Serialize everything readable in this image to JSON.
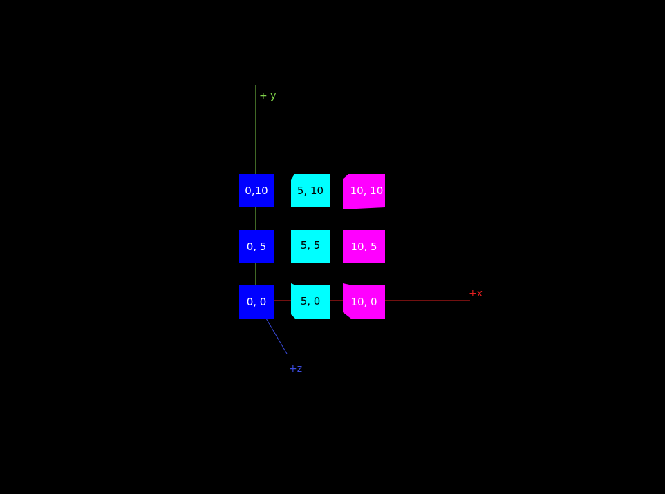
{
  "axes": {
    "y": {
      "label": "+ y",
      "color": "#7fd14a"
    },
    "x": {
      "label": "+x",
      "color": "#e32020"
    },
    "z": {
      "label": "+z",
      "color": "#3b4be0"
    }
  },
  "boxes": [
    {
      "label": "0,10",
      "color": "#0000ff",
      "text_color": "#ffffff"
    },
    {
      "label": "5, 10",
      "color": "#00ffff",
      "text_color": "#000000"
    },
    {
      "label": "10, 10",
      "color": "#ff00ff",
      "text_color": "#ffffff"
    },
    {
      "label": "0, 5",
      "color": "#0000ff",
      "text_color": "#ffffff"
    },
    {
      "label": "5, 5",
      "color": "#00ffff",
      "text_color": "#000000"
    },
    {
      "label": "10, 5",
      "color": "#ff00ff",
      "text_color": "#ffffff"
    },
    {
      "label": "0, 0",
      "color": "#0000ff",
      "text_color": "#ffffff"
    },
    {
      "label": "5, 0",
      "color": "#00ffff",
      "text_color": "#000000"
    },
    {
      "label": "10, 0",
      "color": "#ff00ff",
      "text_color": "#ffffff"
    }
  ]
}
